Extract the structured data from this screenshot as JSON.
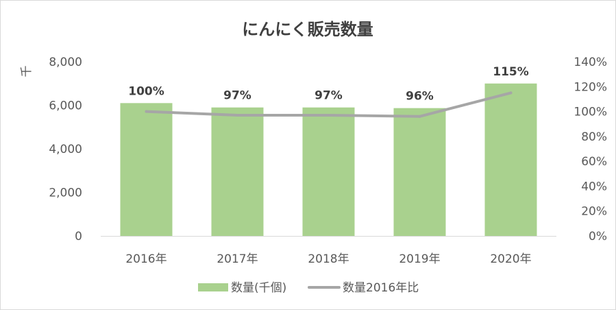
{
  "chart_data": {
    "type": "bar",
    "title": "にんにく販売数量",
    "categories": [
      "2016年",
      "2017年",
      "2018年",
      "2019年",
      "2020年"
    ],
    "series": [
      {
        "name": "数量(千個)",
        "type": "bar",
        "axis": "left",
        "values": [
          6100,
          5900,
          5900,
          5870,
          7000
        ],
        "color": "#a9d18e"
      },
      {
        "name": "数量2016年比",
        "type": "line",
        "axis": "right",
        "values": [
          1.0,
          0.97,
          0.97,
          0.96,
          1.15
        ],
        "data_labels": [
          "100%",
          "97%",
          "97%",
          "96%",
          "115%"
        ],
        "color": "#a6a6a6"
      }
    ],
    "y_left": {
      "label": "千",
      "ylim": [
        0,
        8000
      ],
      "ticks": [
        0,
        2000,
        4000,
        6000,
        8000
      ],
      "tick_labels": [
        "0",
        "2,000",
        "4,000",
        "6,000",
        "8,000"
      ]
    },
    "y_right": {
      "ylim": [
        0,
        1.4
      ],
      "ticks": [
        0,
        0.2,
        0.4,
        0.6,
        0.8,
        1.0,
        1.2,
        1.4
      ],
      "tick_labels": [
        "0%",
        "20%",
        "40%",
        "60%",
        "80%",
        "100%",
        "120%",
        "140%"
      ]
    },
    "grid": false,
    "legend": "bottom"
  }
}
